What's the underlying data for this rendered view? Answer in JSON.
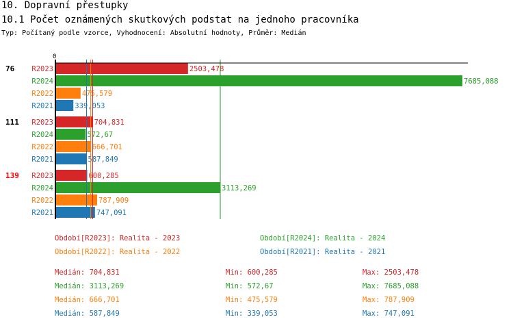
{
  "header": {
    "section": "10. Dopravní přestupky",
    "title": "10.1 Počet oznámených skutkových podstat na jednoho pracovníka",
    "subtitle": "Typ: Počítaný podle vzorce, Vyhodnocení: Absolutní hodnoty, Průměr: Medián"
  },
  "chart_data": {
    "type": "bar",
    "orientation": "horizontal",
    "xlim": [
      0,
      7685.088
    ],
    "zero_label": "0",
    "categories": [
      {
        "label": "76",
        "color": "#000000"
      },
      {
        "label": "111",
        "color": "#000000"
      },
      {
        "label": "139",
        "color": "#ff0000"
      }
    ],
    "series": [
      {
        "name": "R2023",
        "color": "#d62728",
        "values": [
          2503.478,
          704.831,
          600.285
        ],
        "labels": [
          "2503,478",
          "704,831",
          "600,285"
        ]
      },
      {
        "name": "R2024",
        "color": "#2ca02c",
        "values": [
          7685.088,
          572.67,
          3113.269
        ],
        "labels": [
          "7685,088",
          "572,67",
          "3113,269"
        ]
      },
      {
        "name": "R2022",
        "color": "#ff7f0e",
        "values": [
          475.579,
          666.701,
          787.909
        ],
        "labels": [
          "475,579",
          "666,701",
          "787,909"
        ]
      },
      {
        "name": "R2021",
        "color": "#1f77b4",
        "values": [
          339.053,
          587.849,
          747.091
        ],
        "labels": [
          "339,053",
          "587,849",
          "747,091"
        ]
      }
    ],
    "medians": [
      704.831,
      3113.269,
      666.701,
      587.849
    ]
  },
  "legend": [
    {
      "text": "Období[R2023]: Realita - 2023",
      "color": "#d62728"
    },
    {
      "text": "Období[R2024]: Realita - 2024",
      "color": "#2ca02c"
    },
    {
      "text": "Období[R2022]: Realita - 2022",
      "color": "#ff7f0e"
    },
    {
      "text": "Období[R2021]: Realita - 2021",
      "color": "#1f77b4"
    }
  ],
  "stats": [
    {
      "median": "Medián: 704,831",
      "min": "Min: 600,285",
      "max": "Max: 2503,478",
      "color": "#d62728"
    },
    {
      "median": "Medián: 3113,269",
      "min": "Min: 572,67",
      "max": "Max: 7685,088",
      "color": "#2ca02c"
    },
    {
      "median": "Medián: 666,701",
      "min": "Min: 475,579",
      "max": "Max: 787,909",
      "color": "#ff7f0e"
    },
    {
      "median": "Medián: 587,849",
      "min": "Min: 339,053",
      "max": "Max: 747,091",
      "color": "#1f77b4"
    }
  ]
}
